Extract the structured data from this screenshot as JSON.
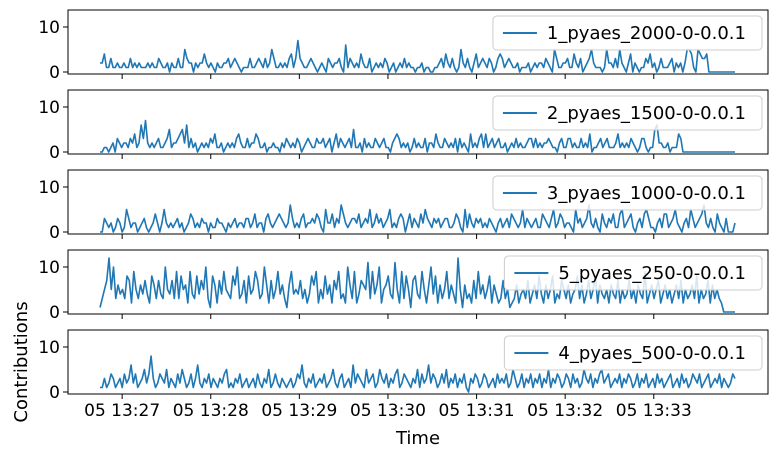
{
  "chart_data": {
    "type": "line",
    "xlabel": "Time",
    "ylabel": "Contributions",
    "x_tick_labels": [
      "05 13:27",
      "05 13:28",
      "05 13:29",
      "05 13:30",
      "05 13:31",
      "05 13:32",
      "05 13:33"
    ],
    "x_range": [
      "13:26:45",
      "13:33:55"
    ],
    "ylim": [
      0,
      12
    ],
    "y_ticks": [
      0,
      10
    ],
    "grid": false,
    "legend_position": "upper-right",
    "colors": {
      "line": "#1f77b4"
    },
    "subplots": [
      {
        "legend": "1_pyaes_2000-0-0.0.1",
        "values": [
          2,
          2,
          4,
          1,
          1,
          3,
          1,
          1,
          2,
          1,
          1,
          2,
          1,
          1,
          3,
          1,
          2,
          1,
          2,
          1,
          1,
          1,
          2,
          1,
          2,
          1,
          1,
          3,
          2,
          1,
          1,
          2,
          0,
          2,
          1,
          1,
          3,
          1,
          1,
          5,
          3,
          2,
          2,
          0,
          2,
          1,
          2,
          2,
          4,
          2,
          1,
          2,
          1,
          0,
          2,
          1,
          1,
          2,
          2,
          3,
          1,
          2,
          3,
          2,
          1,
          0,
          1,
          1,
          1,
          3,
          1,
          1,
          2,
          3,
          2,
          1,
          3,
          1,
          2,
          5,
          3,
          1,
          1,
          2,
          1,
          2,
          1,
          3,
          4,
          1,
          3,
          7,
          3,
          2,
          1,
          1,
          2,
          3,
          2,
          1,
          0,
          1,
          2,
          1,
          0,
          3,
          2,
          1,
          2,
          2,
          3,
          1,
          0,
          6,
          1,
          3,
          2,
          1,
          2,
          1,
          4,
          2,
          1,
          1,
          3,
          0,
          1,
          2,
          1,
          2,
          1,
          3,
          2,
          0,
          1,
          2,
          0,
          1,
          2,
          1,
          3,
          1,
          2,
          1,
          1,
          0,
          1,
          1,
          2,
          0,
          1,
          1,
          0,
          0,
          1,
          1,
          2,
          3,
          1,
          4,
          2,
          1,
          3,
          1,
          0,
          1,
          5,
          2,
          1,
          3,
          1,
          0,
          2,
          4,
          1,
          2,
          3,
          2,
          1,
          3,
          2,
          0,
          1,
          3,
          4,
          3,
          1,
          2,
          3,
          2,
          1,
          1,
          2,
          0,
          1,
          1,
          1,
          2,
          0,
          1,
          2,
          1,
          2,
          2,
          1,
          3,
          2,
          1,
          0,
          5,
          3,
          1,
          1,
          2,
          2,
          3,
          1,
          1,
          4,
          2,
          1,
          3,
          0,
          1,
          2,
          3,
          5,
          2,
          1,
          1,
          1,
          0,
          1,
          5,
          2,
          2,
          1,
          3,
          1,
          5,
          2,
          1,
          0,
          2,
          4,
          0,
          2,
          1,
          0,
          1,
          1,
          3,
          2,
          4,
          1,
          2,
          0,
          1,
          3,
          1,
          1,
          1,
          2,
          3,
          0,
          2,
          1,
          2,
          0,
          2,
          5,
          5,
          4,
          1,
          0,
          5,
          4,
          3,
          3,
          4,
          0,
          0,
          0,
          0,
          0,
          0,
          0,
          0,
          0,
          0,
          0,
          0,
          0
        ]
      },
      {
        "legend": "2_pyaes_1500-0-0.0.1",
        "values": [
          0,
          0,
          1,
          1,
          0,
          1,
          2,
          0,
          3,
          2,
          1,
          2,
          2,
          1,
          3,
          2,
          4,
          1,
          2,
          6,
          3,
          7,
          2,
          1,
          2,
          1,
          2,
          3,
          1,
          1,
          2,
          3,
          5,
          1,
          2,
          2,
          3,
          4,
          5,
          2,
          6,
          1,
          3,
          1,
          2,
          0,
          1,
          2,
          1,
          2,
          1,
          3,
          2,
          4,
          1,
          1,
          2,
          0,
          1,
          2,
          1,
          2,
          1,
          3,
          4,
          2,
          1,
          1,
          3,
          1,
          2,
          2,
          4,
          3,
          1,
          1,
          2,
          0,
          1,
          1,
          2,
          1,
          1,
          0,
          2,
          1,
          3,
          2,
          1,
          2,
          1,
          3,
          2,
          0,
          1,
          2,
          3,
          2,
          1,
          1,
          3,
          2,
          2,
          3,
          1,
          2,
          3,
          0,
          2,
          4,
          1,
          3,
          2,
          1,
          2,
          3,
          1,
          5,
          1,
          1,
          2,
          0,
          3,
          1,
          2,
          1,
          1,
          3,
          2,
          1,
          2,
          3,
          1,
          1,
          0,
          2,
          3,
          4,
          3,
          1,
          2,
          1,
          2,
          0,
          1,
          3,
          1,
          2,
          1,
          1,
          3,
          0,
          2,
          2,
          1,
          4,
          2,
          1,
          1,
          3,
          2,
          1,
          2,
          1,
          3,
          0,
          3,
          1,
          2,
          1,
          0,
          4,
          1,
          2,
          1,
          3,
          4,
          1,
          4,
          1,
          2,
          3,
          1,
          2,
          3,
          1,
          1,
          2,
          0,
          1,
          2,
          1,
          3,
          1,
          2,
          1,
          1,
          2,
          3,
          3,
          1,
          3,
          1,
          2,
          1,
          2,
          2,
          3,
          2,
          1,
          1,
          0,
          2,
          3,
          1,
          1,
          3,
          3,
          1,
          2,
          1,
          1,
          3,
          1,
          2,
          1,
          4,
          0,
          1,
          1,
          2,
          3,
          1,
          2,
          3,
          1,
          1,
          1,
          2,
          4,
          1,
          2,
          1,
          2,
          1,
          3,
          2,
          1,
          0,
          1,
          3,
          3,
          1,
          0,
          1,
          1,
          5,
          6,
          2,
          2,
          1,
          1,
          2,
          0,
          1,
          1,
          1,
          4,
          3,
          0,
          0,
          0,
          0,
          0,
          0,
          0,
          0,
          0,
          0,
          0,
          0,
          0,
          0,
          0,
          0,
          0,
          0,
          0,
          0,
          0,
          0,
          0,
          0,
          0
        ]
      },
      {
        "legend": "3_pyaes_1000-0-0.0.1",
        "values": [
          0,
          0,
          3,
          2,
          1,
          2,
          0,
          1,
          3,
          2,
          0,
          1,
          5,
          3,
          1,
          2,
          2,
          0,
          1,
          2,
          3,
          1,
          0,
          1,
          2,
          4,
          2,
          0,
          2,
          5,
          2,
          1,
          2,
          1,
          2,
          3,
          1,
          2,
          0,
          1,
          2,
          4,
          3,
          1,
          2,
          1,
          3,
          2,
          2,
          0,
          2,
          1,
          1,
          3,
          2,
          2,
          1,
          0,
          2,
          1,
          2,
          3,
          1,
          2,
          2,
          1,
          3,
          3,
          1,
          2,
          4,
          1,
          2,
          2,
          0,
          3,
          4,
          2,
          1,
          2,
          3,
          4,
          3,
          2,
          1,
          2,
          6,
          3,
          1,
          2,
          1,
          3,
          4,
          1,
          2,
          2,
          3,
          2,
          4,
          3,
          1,
          0,
          5,
          2,
          2,
          4,
          1,
          3,
          2,
          6,
          4,
          2,
          1,
          2,
          3,
          3,
          2,
          4,
          1,
          2,
          3,
          2,
          5,
          1,
          2,
          4,
          2,
          3,
          1,
          2,
          3,
          5,
          1,
          2,
          1,
          3,
          4,
          3,
          0,
          2,
          4,
          1,
          3,
          2,
          1,
          4,
          2,
          5,
          3,
          2,
          1,
          3,
          2,
          3,
          1,
          2,
          3,
          3,
          1,
          1,
          2,
          4,
          3,
          1,
          0,
          5,
          1,
          4,
          2,
          1,
          3,
          2,
          3,
          1,
          2,
          1,
          3,
          2,
          1,
          0,
          2,
          3,
          1,
          2,
          3,
          1,
          4,
          3,
          2,
          1,
          2,
          5,
          1,
          3,
          2,
          1,
          2,
          3,
          1,
          1,
          4,
          3,
          2,
          1,
          3,
          5,
          1,
          2,
          4,
          3,
          1,
          2,
          2,
          1,
          0,
          5,
          2,
          3,
          1,
          2,
          3,
          6,
          2,
          1,
          3,
          1,
          0,
          4,
          2,
          1,
          3,
          2,
          4,
          1,
          1,
          4,
          5,
          1,
          2,
          3,
          4,
          1,
          0,
          2,
          3,
          1,
          4,
          5,
          3,
          1,
          1,
          0,
          2,
          3,
          1,
          4,
          4,
          1,
          2,
          3,
          5,
          2,
          1,
          0,
          2,
          3,
          1,
          5,
          3,
          1,
          2,
          3,
          4,
          6,
          2,
          1,
          3,
          1,
          0,
          4,
          2,
          1,
          0,
          3,
          0,
          0,
          0,
          2
        ]
      },
      {
        "legend": "5_pyaes_250-0-0.0.1",
        "values": [
          1,
          3,
          5,
          7,
          12,
          5,
          10,
          3,
          6,
          4,
          5,
          3,
          8,
          7,
          2,
          9,
          5,
          3,
          6,
          4,
          7,
          4,
          2,
          8,
          6,
          3,
          7,
          4,
          3,
          10,
          5,
          4,
          7,
          3,
          9,
          3,
          8,
          5,
          6,
          2,
          9,
          4,
          3,
          8,
          4,
          7,
          5,
          10,
          3,
          1,
          8,
          6,
          2,
          7,
          4,
          9,
          5,
          4,
          3,
          8,
          6,
          10,
          3,
          4,
          7,
          2,
          8,
          4,
          5,
          9,
          7,
          3,
          4,
          10,
          6,
          2,
          7,
          3,
          5,
          9,
          4,
          6,
          3,
          1,
          6,
          9,
          4,
          5,
          4,
          7,
          3,
          5,
          2,
          4,
          8,
          6,
          9,
          2,
          5,
          3,
          8,
          4,
          6,
          2,
          7,
          5,
          9,
          3,
          4,
          2,
          10,
          6,
          3,
          9,
          2,
          4,
          7,
          6,
          5,
          11,
          3,
          9,
          4,
          6,
          10,
          2,
          5,
          6,
          8,
          4,
          3,
          11,
          5,
          2,
          9,
          3,
          8,
          5,
          1,
          7,
          8,
          4,
          3,
          9,
          5,
          2,
          6,
          10,
          4,
          8,
          2,
          6,
          3,
          5,
          9,
          3,
          6,
          4,
          2,
          12,
          5,
          1,
          6,
          3,
          4,
          2,
          7,
          3,
          9,
          4,
          6,
          3,
          5,
          8,
          2,
          6,
          4,
          2,
          3,
          7,
          3,
          5,
          1,
          2,
          3,
          6,
          2,
          4,
          5,
          3,
          7,
          2,
          4,
          6,
          3,
          8,
          4,
          2,
          6,
          3,
          5,
          8,
          2,
          4,
          3,
          7,
          5,
          3,
          6,
          2,
          4,
          5,
          8,
          3,
          6,
          2,
          4,
          7,
          3,
          5,
          8,
          2,
          6,
          4,
          3,
          5,
          2,
          6,
          4,
          3,
          7,
          2,
          5,
          3,
          4,
          7,
          3,
          5,
          2,
          6,
          4,
          3,
          9,
          2,
          4,
          6,
          3,
          5,
          7,
          2,
          4,
          6,
          3,
          5,
          2,
          4,
          6,
          3,
          7,
          2,
          5,
          3,
          4,
          6,
          3,
          8,
          2,
          5,
          3,
          4,
          7,
          2,
          6,
          3,
          5,
          3,
          2,
          0,
          0,
          0,
          0,
          0,
          0
        ]
      },
      {
        "legend": "4_pyaes_500-0-0.0.1",
        "values": [
          1,
          1,
          3,
          1,
          2,
          4,
          3,
          1,
          2,
          3,
          1,
          4,
          2,
          3,
          6,
          2,
          4,
          1,
          2,
          3,
          5,
          2,
          4,
          8,
          3,
          1,
          2,
          4,
          3,
          2,
          5,
          1,
          3,
          2,
          1,
          4,
          2,
          5,
          3,
          1,
          2,
          4,
          1,
          3,
          6,
          2,
          1,
          3,
          2,
          4,
          1,
          3,
          2,
          1,
          3,
          2,
          4,
          5,
          1,
          2,
          1,
          3,
          2,
          4,
          1,
          2,
          3,
          1,
          2,
          3,
          1,
          4,
          2,
          1,
          3,
          2,
          5,
          1,
          2,
          4,
          2,
          1,
          3,
          2,
          1,
          2,
          3,
          1,
          2,
          4,
          3,
          6,
          2,
          1,
          3,
          2,
          4,
          1,
          2,
          3,
          2,
          4,
          1,
          2,
          3,
          5,
          2,
          1,
          3,
          4,
          1,
          2,
          3,
          1,
          6,
          2,
          4,
          3,
          2,
          1,
          5,
          2,
          3,
          4,
          1,
          2,
          5,
          3,
          2,
          4,
          1,
          3,
          2,
          4,
          5,
          1,
          2,
          4,
          3,
          2,
          1,
          3,
          2,
          5,
          1,
          4,
          2,
          3,
          6,
          2,
          4,
          3,
          1,
          2,
          4,
          2,
          5,
          1,
          3,
          2,
          4,
          1,
          3,
          2,
          4,
          1,
          0,
          3,
          2,
          4,
          3,
          1,
          2,
          4,
          3,
          1,
          2,
          3,
          1,
          4,
          2,
          3,
          2,
          4,
          1,
          2,
          5,
          3,
          1,
          2,
          4,
          1,
          3,
          2,
          4,
          1,
          3,
          2,
          4,
          1,
          3,
          2,
          5,
          1,
          3,
          2,
          4,
          3,
          1,
          2,
          4,
          3,
          1,
          4,
          2,
          3,
          1,
          2,
          5,
          3,
          2,
          4,
          1,
          3,
          2,
          4,
          5,
          2,
          3,
          4,
          1,
          2,
          3,
          2,
          4,
          1,
          3,
          2,
          4,
          3,
          1,
          2,
          4,
          1,
          3,
          2,
          4,
          1,
          2,
          3,
          1,
          4,
          2,
          3,
          1,
          2,
          3,
          4,
          1,
          2,
          3,
          1,
          4,
          2,
          3,
          1,
          2,
          4,
          3,
          2,
          4,
          1,
          2,
          3,
          4,
          1,
          2,
          3,
          2,
          4,
          1,
          3,
          2,
          1,
          2,
          4,
          3
        ]
      }
    ]
  }
}
